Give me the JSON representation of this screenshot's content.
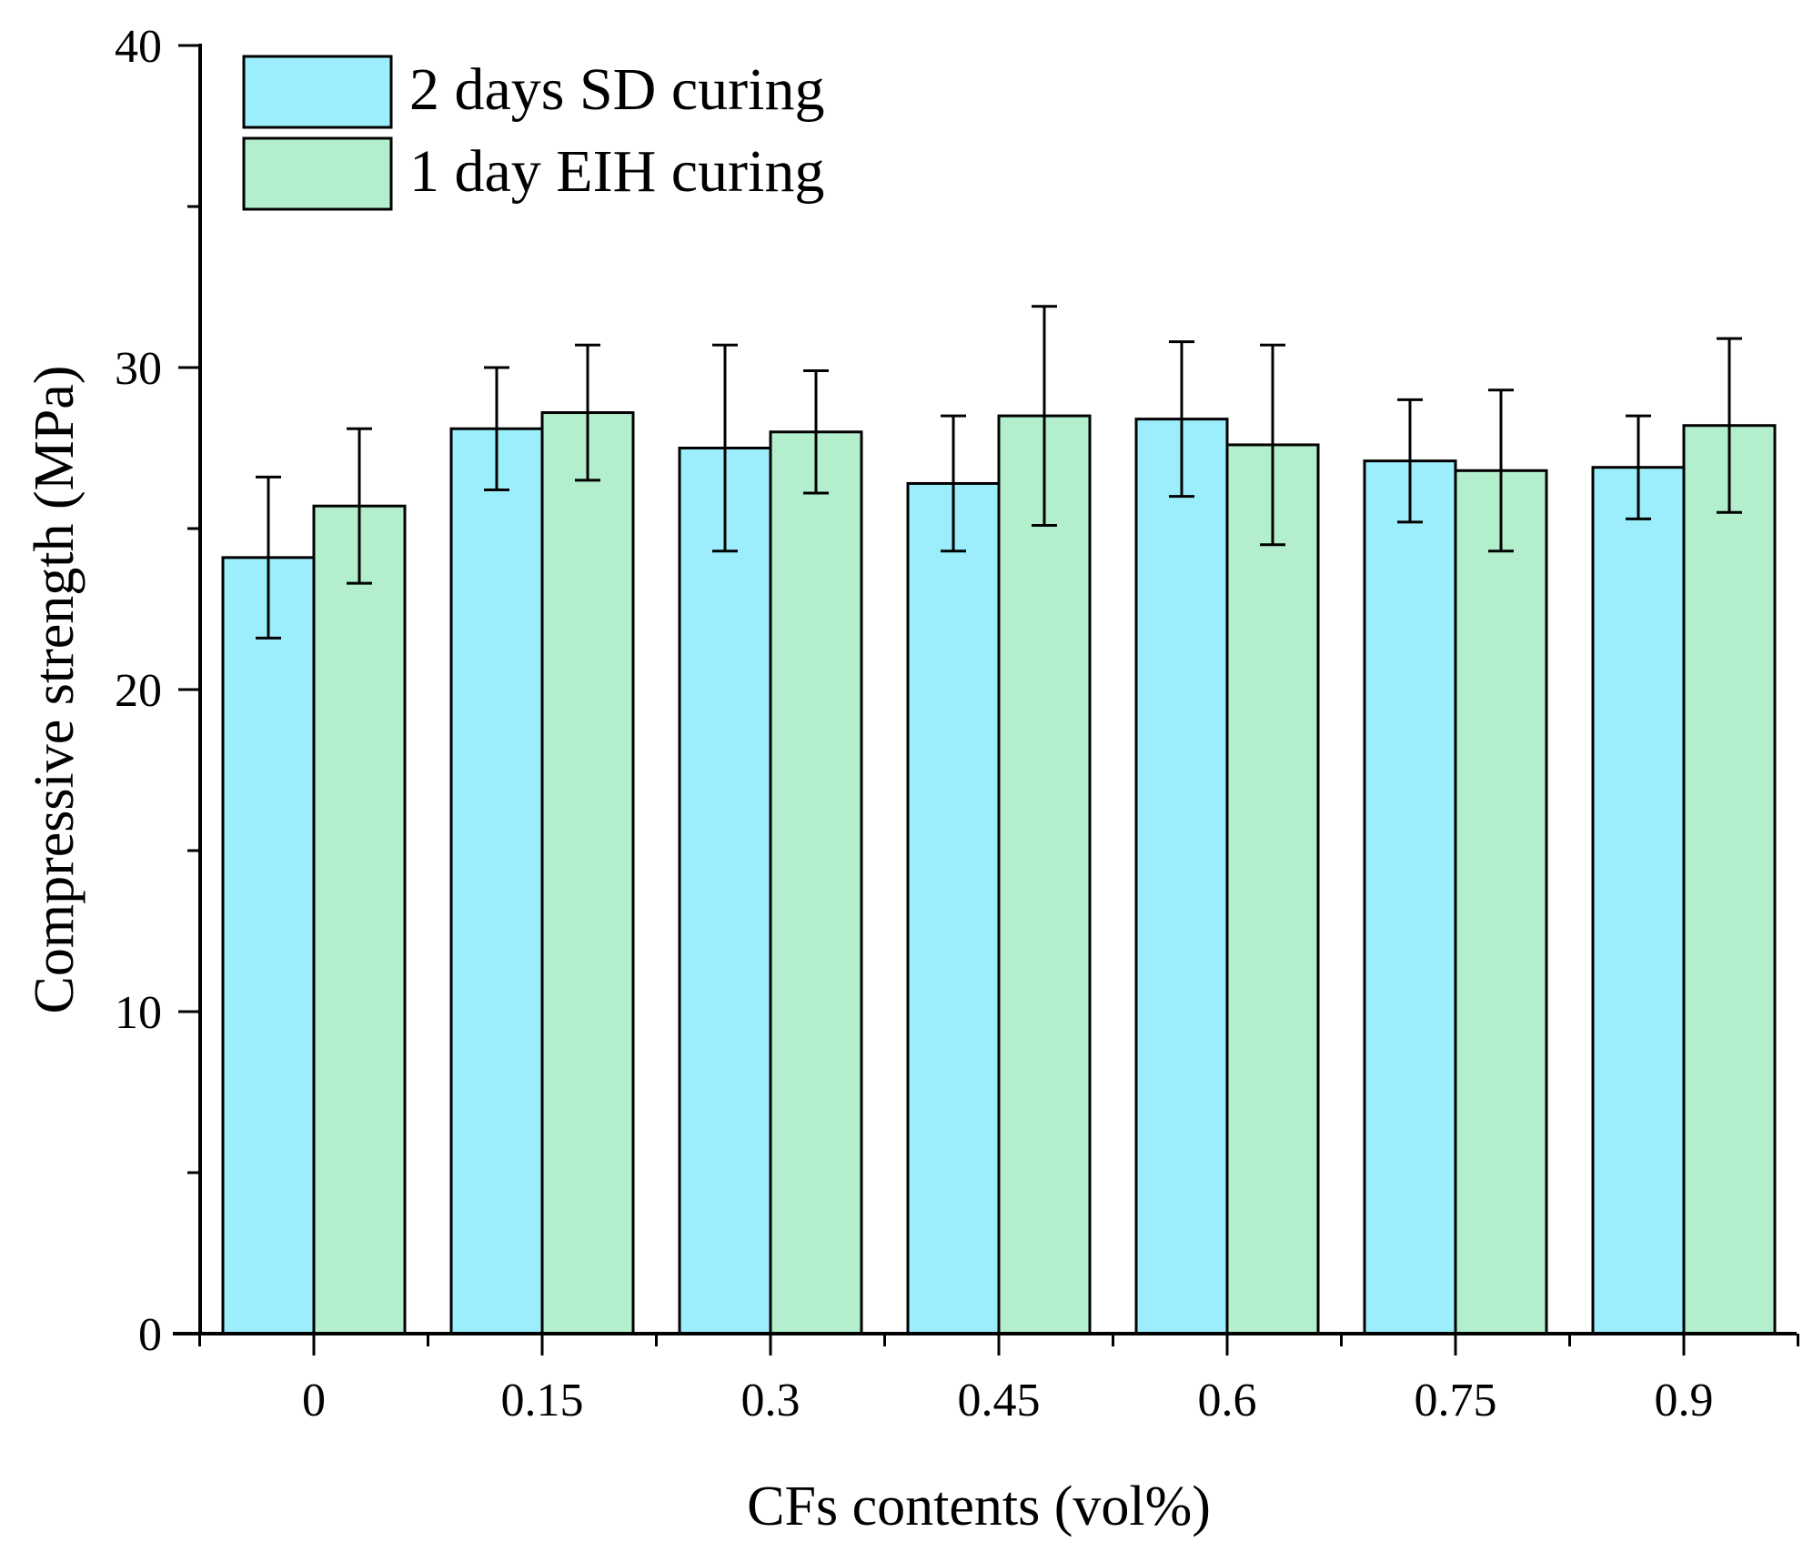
{
  "chart_data": {
    "type": "bar",
    "title": "",
    "xlabel": "CFs contents (vol%)",
    "ylabel": "Compressive strength (MPa)",
    "ylim": [
      0,
      40
    ],
    "yticks": [
      0,
      10,
      20,
      30,
      40
    ],
    "grid": false,
    "legend_position": "top-left",
    "categories": [
      "0",
      "0.15",
      "0.3",
      "0.45",
      "0.6",
      "0.75",
      "0.9"
    ],
    "series": [
      {
        "name": "2 days SD curing",
        "color": "#9ceefc",
        "values": [
          24.1,
          28.1,
          27.5,
          26.4,
          28.4,
          27.1,
          26.9
        ],
        "errors": [
          2.5,
          1.9,
          3.2,
          2.1,
          2.4,
          1.9,
          1.6
        ]
      },
      {
        "name": "1 day EIH curing",
        "color": "#b3efcd",
        "values": [
          25.7,
          28.6,
          28.0,
          28.5,
          27.6,
          26.8,
          28.2
        ],
        "errors": [
          2.4,
          2.1,
          1.9,
          3.4,
          3.1,
          2.5,
          2.7
        ]
      }
    ]
  }
}
